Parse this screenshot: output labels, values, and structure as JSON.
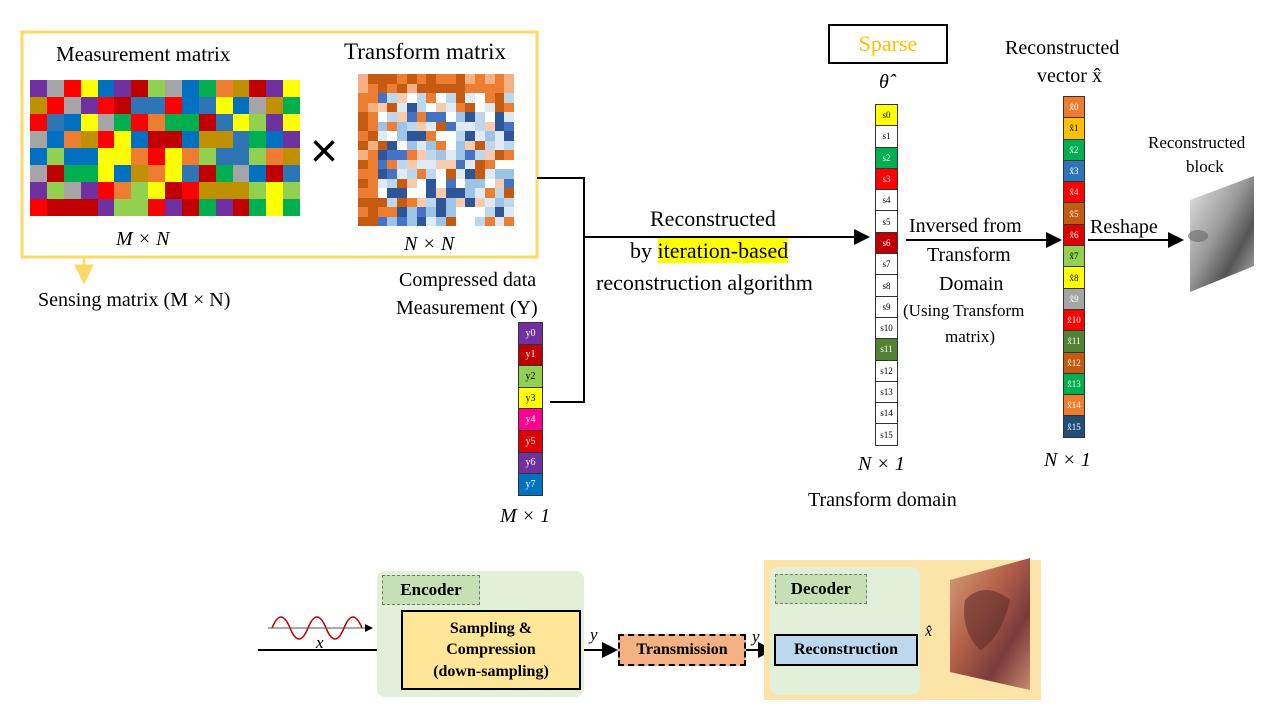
{
  "top": {
    "measurement_title": "Measurement  matrix",
    "transform_title": "Transform matrix",
    "times_symbol": "×",
    "measurement_dims": "M × N",
    "transform_dims": "N × N",
    "sensing_label": "Sensing matrix (M × N)",
    "compressed_line1": "Compressed data",
    "compressed_line2": "Measurement (Y)",
    "y_dims": "M × 1",
    "recon_line1": "Reconstructed",
    "recon_line2_prefix": "by ",
    "recon_line2_highlight": "iteration-based",
    "recon_line3": "reconstruction algorithm",
    "sparse_label": "Sparse",
    "theta_label": "θ̂",
    "s_dims": "N × 1",
    "transform_domain": "Transform domain",
    "inversed_line1": "Inversed from",
    "inversed_line2": "Transform",
    "inversed_line3": "Domain",
    "inversed_line4": "(Using Transform",
    "inversed_line5": "matrix)",
    "xhat_title1": "Reconstructed",
    "xhat_title2": "vector x̂",
    "x_dims": "N × 1",
    "reshape_label": "Reshape",
    "block_line1": "Reconstructed",
    "block_line2": "block"
  },
  "y_vector": {
    "labels": [
      "y0",
      "y1",
      "y2",
      "y3",
      "y4",
      "y5",
      "y6",
      "y7"
    ],
    "colors": [
      "#7030a0",
      "#c00000",
      "#92d050",
      "#ffff00",
      "#ff0090",
      "#e00000",
      "#7030a0",
      "#0070c0"
    ]
  },
  "s_vector": {
    "labels": [
      "s0",
      "s1",
      "s2",
      "s3",
      "s4",
      "s5",
      "s6",
      "s7",
      "s8",
      "s9",
      "s10",
      "s11",
      "s12",
      "s13",
      "s14",
      "s15"
    ],
    "colors": [
      "#ffff00",
      "#ffffff",
      "#00b050",
      "#ff0000",
      "#ffffff",
      "#ffffff",
      "#c00000",
      "#ffffff",
      "#ffffff",
      "#ffffff",
      "#ffffff",
      "#548235",
      "#ffffff",
      "#ffffff",
      "#ffffff",
      "#ffffff"
    ]
  },
  "x_vector": {
    "labels": [
      "x̂0",
      "x̂1",
      "x̂2",
      "x̂3",
      "x̂4",
      "x̂5",
      "x̂6",
      "x̂7",
      "x̂8",
      "x̂9",
      "x̂10",
      "x̂11",
      "x̂12",
      "x̂13",
      "x̂14",
      "x̂15"
    ],
    "colors": [
      "#ed7d31",
      "#ffc000",
      "#00b050",
      "#2e75b6",
      "#ff0000",
      "#c55a11",
      "#e00000",
      "#92d050",
      "#ffff00",
      "#a5a5a5",
      "#ff0000",
      "#548235",
      "#c55a11",
      "#00b050",
      "#ed7d31",
      "#1f4e79"
    ]
  },
  "bottom": {
    "signal_label": "x",
    "encoder_label": "Encoder",
    "sampling_line1": "Sampling &",
    "sampling_line2": "Compression",
    "sampling_line3": "(down-sampling)",
    "y_label_1": "y",
    "transmission_label": "Transmission",
    "y_label_2": "y",
    "decoder_label": "Decoder",
    "reconstruction_label": "Reconstruction",
    "xhat_label": "x̂"
  },
  "colors": {
    "highlight_yellow": "#ffff00",
    "frame_yellow": "#ffd966",
    "sparse_orange": "#ffc000",
    "encoder_green": "#e2efd9",
    "decoder_bg": "#fce4a8",
    "sampling_fill": "#ffe699",
    "transmission_fill": "#f4b183",
    "reconstruction_fill": "#bdd7ee"
  }
}
